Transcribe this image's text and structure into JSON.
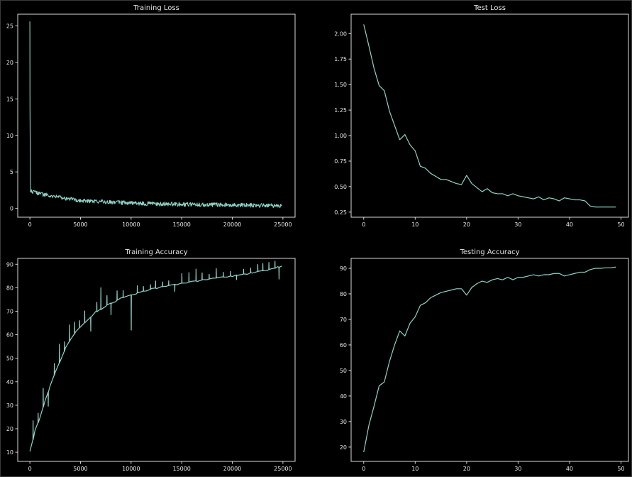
{
  "chart_data": [
    {
      "id": "train-loss",
      "type": "line",
      "title": "Training Loss",
      "xlabel": "",
      "ylabel": "",
      "xlim": [
        -1200,
        26200
      ],
      "ylim": [
        -1.2,
        26.6
      ],
      "xticks": [
        0,
        5000,
        10000,
        15000,
        20000,
        25000
      ],
      "yticks": [
        0,
        5,
        10,
        15,
        20,
        25
      ],
      "ytick_labels": [
        "0",
        "5",
        "10",
        "15",
        "20",
        "25"
      ],
      "grid": false,
      "line_color": "#8dd3c7",
      "series": [
        {
          "x": [
            0,
            10,
            60,
            120,
            500,
            1000,
            2000,
            3000,
            4000,
            5000,
            6000,
            7000,
            8000,
            9000,
            10000,
            11000,
            12000,
            13000,
            14000,
            15000,
            16000,
            17000,
            18000,
            19000,
            20000,
            21000,
            22000,
            23000,
            24000,
            24900
          ],
          "y": [
            25.6,
            14.0,
            2.4,
            2.3,
            2.15,
            2.0,
            1.75,
            1.5,
            1.3,
            1.1,
            1.0,
            0.92,
            0.86,
            0.8,
            0.75,
            0.7,
            0.66,
            0.62,
            0.6,
            0.57,
            0.55,
            0.53,
            0.51,
            0.49,
            0.47,
            0.45,
            0.43,
            0.41,
            0.39,
            0.37
          ],
          "noise": 0.28
        }
      ]
    },
    {
      "id": "test-loss",
      "type": "line",
      "title": "Test Loss",
      "xlabel": "",
      "ylabel": "",
      "xlim": [
        -2.45,
        51.45
      ],
      "ylim": [
        0.2,
        2.19
      ],
      "xticks": [
        0,
        10,
        20,
        30,
        40,
        50
      ],
      "yticks": [
        0.25,
        0.5,
        0.75,
        1.0,
        1.25,
        1.5,
        1.75,
        2.0
      ],
      "ytick_labels": [
        "0.25",
        "0.50",
        "0.75",
        "1.00",
        "1.25",
        "1.50",
        "1.75",
        "2.00"
      ],
      "grid": false,
      "line_color": "#8dd3c7",
      "series": [
        {
          "x": [
            0,
            1,
            2,
            3,
            4,
            5,
            6,
            7,
            8,
            9,
            10,
            11,
            12,
            13,
            14,
            15,
            16,
            17,
            18,
            19,
            20,
            21,
            22,
            23,
            24,
            25,
            26,
            27,
            28,
            29,
            30,
            31,
            32,
            33,
            34,
            35,
            36,
            37,
            38,
            39,
            40,
            41,
            42,
            43,
            44,
            45,
            46,
            47,
            48,
            49
          ],
          "y": [
            2.09,
            1.88,
            1.66,
            1.49,
            1.44,
            1.24,
            1.1,
            0.96,
            1.01,
            0.91,
            0.85,
            0.7,
            0.68,
            0.63,
            0.6,
            0.57,
            0.57,
            0.55,
            0.53,
            0.52,
            0.61,
            0.53,
            0.49,
            0.45,
            0.48,
            0.44,
            0.43,
            0.43,
            0.41,
            0.43,
            0.41,
            0.4,
            0.39,
            0.38,
            0.4,
            0.37,
            0.39,
            0.38,
            0.36,
            0.39,
            0.38,
            0.37,
            0.37,
            0.36,
            0.31,
            0.3,
            0.3,
            0.3,
            0.3,
            0.3
          ]
        }
      ]
    },
    {
      "id": "train-acc",
      "type": "line",
      "title": "Training Accuracy",
      "xlabel": "",
      "ylabel": "",
      "xlim": [
        -1200,
        26200
      ],
      "ylim": [
        6.1,
        92.5
      ],
      "xticks": [
        0,
        5000,
        10000,
        15000,
        20000,
        25000
      ],
      "yticks": [
        10,
        20,
        30,
        40,
        50,
        60,
        70,
        80,
        90
      ],
      "ytick_labels": [
        "10",
        "20",
        "30",
        "40",
        "50",
        "60",
        "70",
        "80",
        "90"
      ],
      "grid": false,
      "line_color": "#8dd3c7",
      "series": [
        {
          "x": [
            0,
            500,
            1000,
            1500,
            2000,
            2500,
            3000,
            3500,
            4000,
            4500,
            5000,
            5500,
            6000,
            6500,
            7000,
            7500,
            8000,
            8500,
            9000,
            9500,
            10000,
            10500,
            11000,
            11500,
            12000,
            12500,
            13000,
            13500,
            14000,
            14500,
            15000,
            15500,
            16000,
            16500,
            17000,
            17500,
            18000,
            18500,
            19000,
            19500,
            20000,
            20500,
            21000,
            21500,
            22000,
            22500,
            23000,
            23500,
            24000,
            24500,
            24900
          ],
          "y": [
            10,
            19,
            25,
            32,
            38,
            44,
            49,
            54,
            58,
            61,
            63.5,
            65.5,
            67.5,
            69.5,
            71,
            72.5,
            73.5,
            74.5,
            75.5,
            76.3,
            77,
            77.7,
            78.3,
            78.9,
            79.4,
            80,
            80.4,
            80.8,
            81.2,
            81.6,
            82,
            82.3,
            82.6,
            83,
            83.3,
            83.6,
            83.9,
            84.2,
            84.5,
            84.8,
            85.1,
            85.5,
            85.8,
            86.1,
            86.5,
            86.9,
            87.3,
            87.7,
            88.1,
            88.6,
            89
          ],
          "spikes": [
            [
              300,
              8
            ],
            [
              800,
              4
            ],
            [
              1300,
              8
            ],
            [
              1800,
              -6
            ],
            [
              2400,
              5
            ],
            [
              2900,
              8
            ],
            [
              3400,
              4
            ],
            [
              3900,
              7
            ],
            [
              4400,
              5
            ],
            [
              4900,
              3
            ],
            [
              5400,
              5
            ],
            [
              6000,
              -6
            ],
            [
              6600,
              4
            ],
            [
              7000,
              9
            ],
            [
              7600,
              4
            ],
            [
              8000,
              -5
            ],
            [
              8600,
              4
            ],
            [
              9200,
              3
            ],
            [
              10000,
              -15
            ],
            [
              10600,
              3
            ],
            [
              11200,
              2
            ],
            [
              11900,
              2
            ],
            [
              12400,
              3
            ],
            [
              13100,
              2
            ],
            [
              13700,
              2
            ],
            [
              14300,
              -3
            ],
            [
              15000,
              4
            ],
            [
              15700,
              4
            ],
            [
              16400,
              5
            ],
            [
              17000,
              3
            ],
            [
              17700,
              2
            ],
            [
              18400,
              4
            ],
            [
              19100,
              2
            ],
            [
              19800,
              2
            ],
            [
              20400,
              -2
            ],
            [
              21100,
              2
            ],
            [
              21800,
              2
            ],
            [
              22500,
              3
            ],
            [
              23000,
              3
            ],
            [
              23600,
              3
            ],
            [
              24200,
              3
            ],
            [
              24600,
              -5
            ]
          ]
        }
      ]
    },
    {
      "id": "test-acc",
      "type": "line",
      "title": "Testing Accuracy",
      "xlabel": "",
      "ylabel": "",
      "xlim": [
        -2.45,
        51.45
      ],
      "ylim": [
        14.4,
        93.9
      ],
      "xticks": [
        0,
        10,
        20,
        30,
        40,
        50
      ],
      "yticks": [
        20,
        30,
        40,
        50,
        60,
        70,
        80,
        90
      ],
      "ytick_labels": [
        "20",
        "30",
        "40",
        "50",
        "60",
        "70",
        "80",
        "90"
      ],
      "grid": false,
      "line_color": "#8dd3c7",
      "series": [
        {
          "x": [
            0,
            1,
            2,
            3,
            4,
            5,
            6,
            7,
            8,
            9,
            10,
            11,
            12,
            13,
            14,
            15,
            16,
            17,
            18,
            19,
            20,
            21,
            22,
            23,
            24,
            25,
            26,
            27,
            28,
            29,
            30,
            31,
            32,
            33,
            34,
            35,
            36,
            37,
            38,
            39,
            40,
            41,
            42,
            43,
            44,
            45,
            46,
            47,
            48,
            49
          ],
          "y": [
            18.0,
            28.5,
            36.0,
            44.0,
            45.5,
            53.5,
            60.0,
            65.5,
            63.5,
            68.5,
            71.0,
            75.5,
            76.5,
            78.5,
            79.5,
            80.5,
            81.0,
            81.5,
            82.0,
            82.0,
            79.5,
            82.5,
            84.0,
            85.0,
            84.5,
            85.5,
            86.0,
            85.5,
            86.5,
            85.5,
            86.5,
            86.5,
            87.0,
            87.5,
            87.0,
            87.5,
            87.5,
            88.0,
            88.0,
            87.0,
            87.5,
            88.0,
            88.5,
            88.5,
            89.5,
            90.0,
            90.0,
            90.2,
            90.2,
            90.5
          ]
        }
      ]
    }
  ]
}
